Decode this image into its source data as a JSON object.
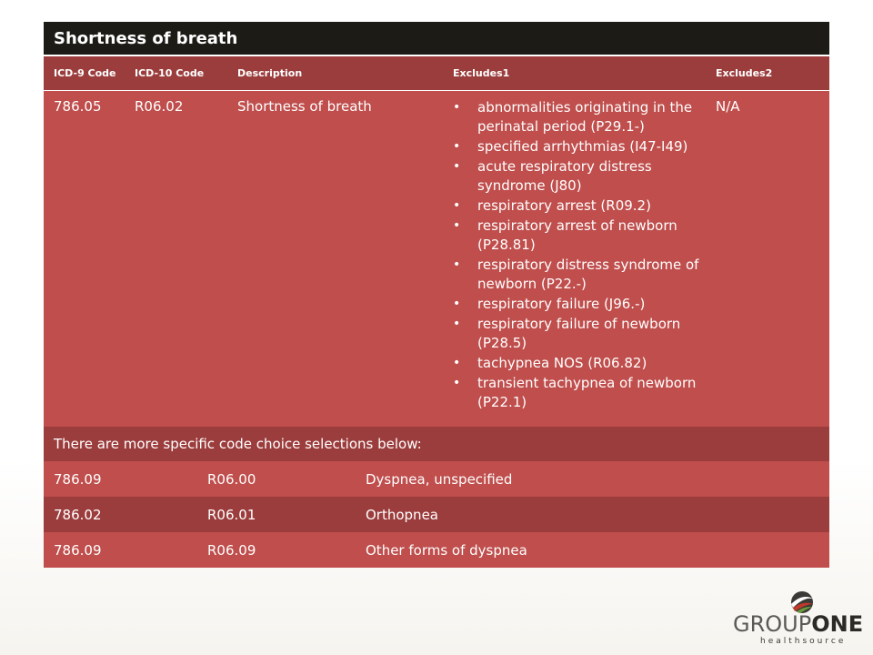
{
  "table": {
    "title": "Shortness of breath",
    "headers": [
      "ICD-9 Code",
      "ICD-10 Code",
      "Description",
      "Excludes1",
      "Excludes2"
    ],
    "main_row": {
      "icd9": "786.05",
      "icd10": "R06.02",
      "description": "Shortness of breath",
      "excludes1": [
        "abnormalities originating in the perinatal period (P29.1-)",
        "specified arrhythmias (I47-I49)",
        "acute respiratory distress syndrome (J80)",
        "respiratory arrest (R09.2)",
        "respiratory arrest of newborn (P28.81)",
        "respiratory distress syndrome of newborn (P22.-)",
        "respiratory failure (J96.-)",
        "respiratory failure of newborn (P28.5)",
        "tachypnea NOS (R06.82)",
        "transient tachypnea of newborn (P22.1)"
      ],
      "excludes2": "N/A"
    },
    "note": "There are more specific code choice selections below:",
    "sub_rows": [
      {
        "icd9": "786.09",
        "icd10": "R06.00",
        "description": "Dyspnea, unspecified"
      },
      {
        "icd9": "786.02",
        "icd10": "R06.01",
        "description": "Orthopnea"
      },
      {
        "icd9": "786.09",
        "icd10": "R06.09",
        "description": "Other forms of dyspnea"
      }
    ]
  },
  "logo": {
    "name_light": "GROUP",
    "name_bold": "ONE",
    "tagline": "healthsource",
    "icon": "swirl-globe-icon"
  },
  "colors": {
    "title_bg": "#1c1b16",
    "dark_row": "#9c3d3d",
    "light_row": "#bf4e4c"
  }
}
